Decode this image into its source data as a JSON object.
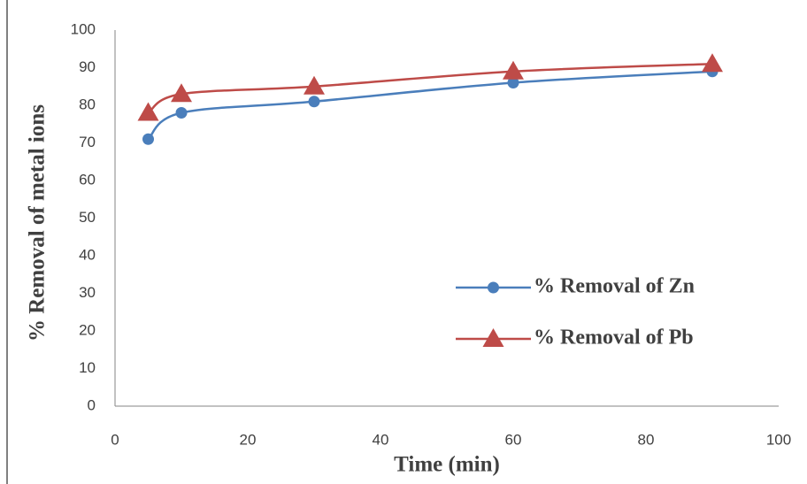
{
  "chart_data": {
    "type": "line",
    "x_label": "Time (min)",
    "y_label": "% Removal of metal ions",
    "x": [
      5,
      10,
      30,
      60,
      90
    ],
    "series": [
      {
        "name": "% Removal of Zn",
        "color": "#4a7ebb",
        "marker": "circle",
        "values": [
          71,
          78,
          81,
          86,
          89
        ]
      },
      {
        "name": "% Removal of Pb",
        "color": "#be4b48",
        "marker": "triangle",
        "values": [
          78,
          83,
          85,
          89,
          91
        ]
      }
    ],
    "xlim": [
      0,
      100
    ],
    "xticks": [
      0,
      20,
      40,
      60,
      80,
      100
    ],
    "ylim": [
      0,
      100
    ],
    "yticks": [
      0,
      10,
      20,
      30,
      40,
      50,
      60,
      70,
      80,
      90,
      100
    ],
    "grid": false,
    "smooth": true,
    "legend": "right"
  }
}
